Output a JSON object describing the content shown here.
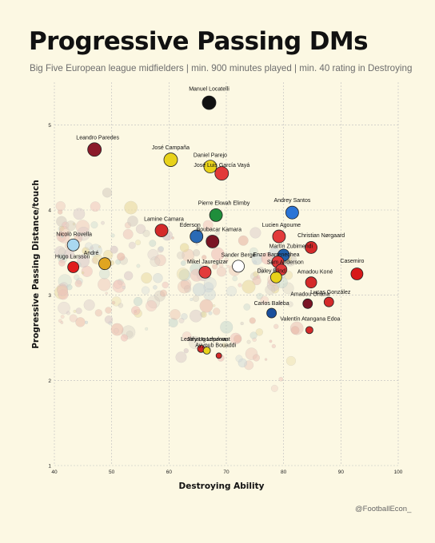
{
  "header": {
    "title": "Progressive Passing DMs",
    "subtitle": "Big Five European league midfielders | min. 900 minutes played | min. 40 rating in Destroying"
  },
  "footer": {
    "credit": "@FootballEcon_"
  },
  "colors": {
    "background": "#fcf8e3",
    "grid": "#bdbdbd"
  },
  "chart_data": {
    "type": "scatter",
    "title": "Progressive Passing DMs",
    "subtitle": "Big Five European league midfielders | min. 900 minutes played | min. 40 rating in Destroying",
    "xlabel": "Destroying Ability",
    "ylabel": "Progressive Passing Distance/touch",
    "xlim": [
      40,
      100
    ],
    "ylim": [
      1,
      5.5
    ],
    "xticks": [
      40,
      50,
      60,
      70,
      80,
      90,
      100
    ],
    "yticks": [
      1,
      2,
      3,
      4,
      5
    ],
    "grid": true,
    "points": [
      {
        "name": "Manuel Locatelli",
        "x": 67.0,
        "y": 5.26,
        "color": "#111111",
        "r": 8.5
      },
      {
        "name": "Leandro Paredes",
        "x": 47.0,
        "y": 4.71,
        "color": "#8b1a2a",
        "r": 8.5
      },
      {
        "name": "José Campaña",
        "x": 60.3,
        "y": 4.59,
        "color": "#e8d21a",
        "r": 8.5
      },
      {
        "name": "Daniel Parejo",
        "x": 67.2,
        "y": 4.51,
        "color": "#e8d21a",
        "r": 8
      },
      {
        "name": "José Luis García Vayá",
        "x": 69.2,
        "y": 4.43,
        "color": "#e23a3a",
        "r": 8.5
      },
      {
        "name": "Pierre Ekwah Elimby",
        "x": 68.2,
        "y": 3.94,
        "color": "#1f8e3b",
        "r": 8
      },
      {
        "name": "Andrey Santos",
        "x": 81.5,
        "y": 3.97,
        "color": "#2b74d6",
        "r": 8
      },
      {
        "name": "Lamine Camara",
        "x": 58.7,
        "y": 3.76,
        "color": "#d42a2a",
        "r": 8
      },
      {
        "name": "Ederson",
        "x": 64.8,
        "y": 3.69,
        "color": "#2a6ab5",
        "r": 8
      },
      {
        "name": "Boubacar Kamara",
        "x": 67.6,
        "y": 3.63,
        "color": "#7a1424",
        "r": 8
      },
      {
        "name": "Lucien Agoume",
        "x": 79.2,
        "y": 3.69,
        "color": "#e23a3a",
        "r": 8
      },
      {
        "name": "Christian Nørgaard",
        "x": 84.8,
        "y": 3.56,
        "color": "#d42a2a",
        "r": 7.5
      },
      {
        "name": "Martín Zubimendi",
        "x": 80.0,
        "y": 3.47,
        "color": "#1f5fa8",
        "r": 7.5
      },
      {
        "name": "Enzo Barrenechea",
        "x": 79.0,
        "y": 3.39,
        "color": "#e23a3a",
        "r": 7.5
      },
      {
        "name": "Nicolò Rovella",
        "x": 43.3,
        "y": 3.59,
        "color": "#a9d8f0",
        "r": 7.5
      },
      {
        "name": "André",
        "x": 48.8,
        "y": 3.37,
        "color": "#e0a520",
        "r": 7.5
      },
      {
        "name": "Hugo Larsson",
        "x": 43.3,
        "y": 3.33,
        "color": "#e01c1c",
        "r": 7
      },
      {
        "name": "Mikel Jauregizar",
        "x": 66.3,
        "y": 3.27,
        "color": "#e23a3a",
        "r": 7.5
      },
      {
        "name": "Sander Berge",
        "x": 72.1,
        "y": 3.34,
        "color": "#ffffff",
        "r": 7.5
      },
      {
        "name": "Sam Anderson",
        "x": 79.6,
        "y": 3.3,
        "color": "#e23a3a",
        "r": 7
      },
      {
        "name": "Daley Blind",
        "x": 78.7,
        "y": 3.21,
        "color": "#e8d21a",
        "r": 7
      },
      {
        "name": "Amadou Koné",
        "x": 84.8,
        "y": 3.15,
        "color": "#d42a2a",
        "r": 7
      },
      {
        "name": "Casemiro",
        "x": 92.8,
        "y": 3.25,
        "color": "#d81818",
        "r": 7.5
      },
      {
        "name": "Amadou Onana",
        "x": 84.2,
        "y": 2.9,
        "color": "#7a1424",
        "r": 6
      },
      {
        "name": "Lucas González",
        "x": 87.9,
        "y": 2.92,
        "color": "#d42a2a",
        "r": 6
      },
      {
        "name": "Carlos Baleba",
        "x": 77.9,
        "y": 2.79,
        "color": "#1a4f9c",
        "r": 6
      },
      {
        "name": "Valentín Atangana Edoa",
        "x": 84.5,
        "y": 2.59,
        "color": "#d42a2a",
        "r": 4.5
      },
      {
        "name": "Lesley Ugochukwu",
        "x": 65.6,
        "y": 2.37,
        "color": "#d42a2a",
        "r": 4.5
      },
      {
        "name": "Johann Lepenant",
        "x": 66.6,
        "y": 2.35,
        "color": "#e8d21a",
        "r": 4.5
      },
      {
        "name": "Ayyoub Bouaddi",
        "x": 68.7,
        "y": 2.29,
        "color": "#d42a2a",
        "r": 3.5
      }
    ],
    "background_points_note": "faded unlabeled players"
  }
}
